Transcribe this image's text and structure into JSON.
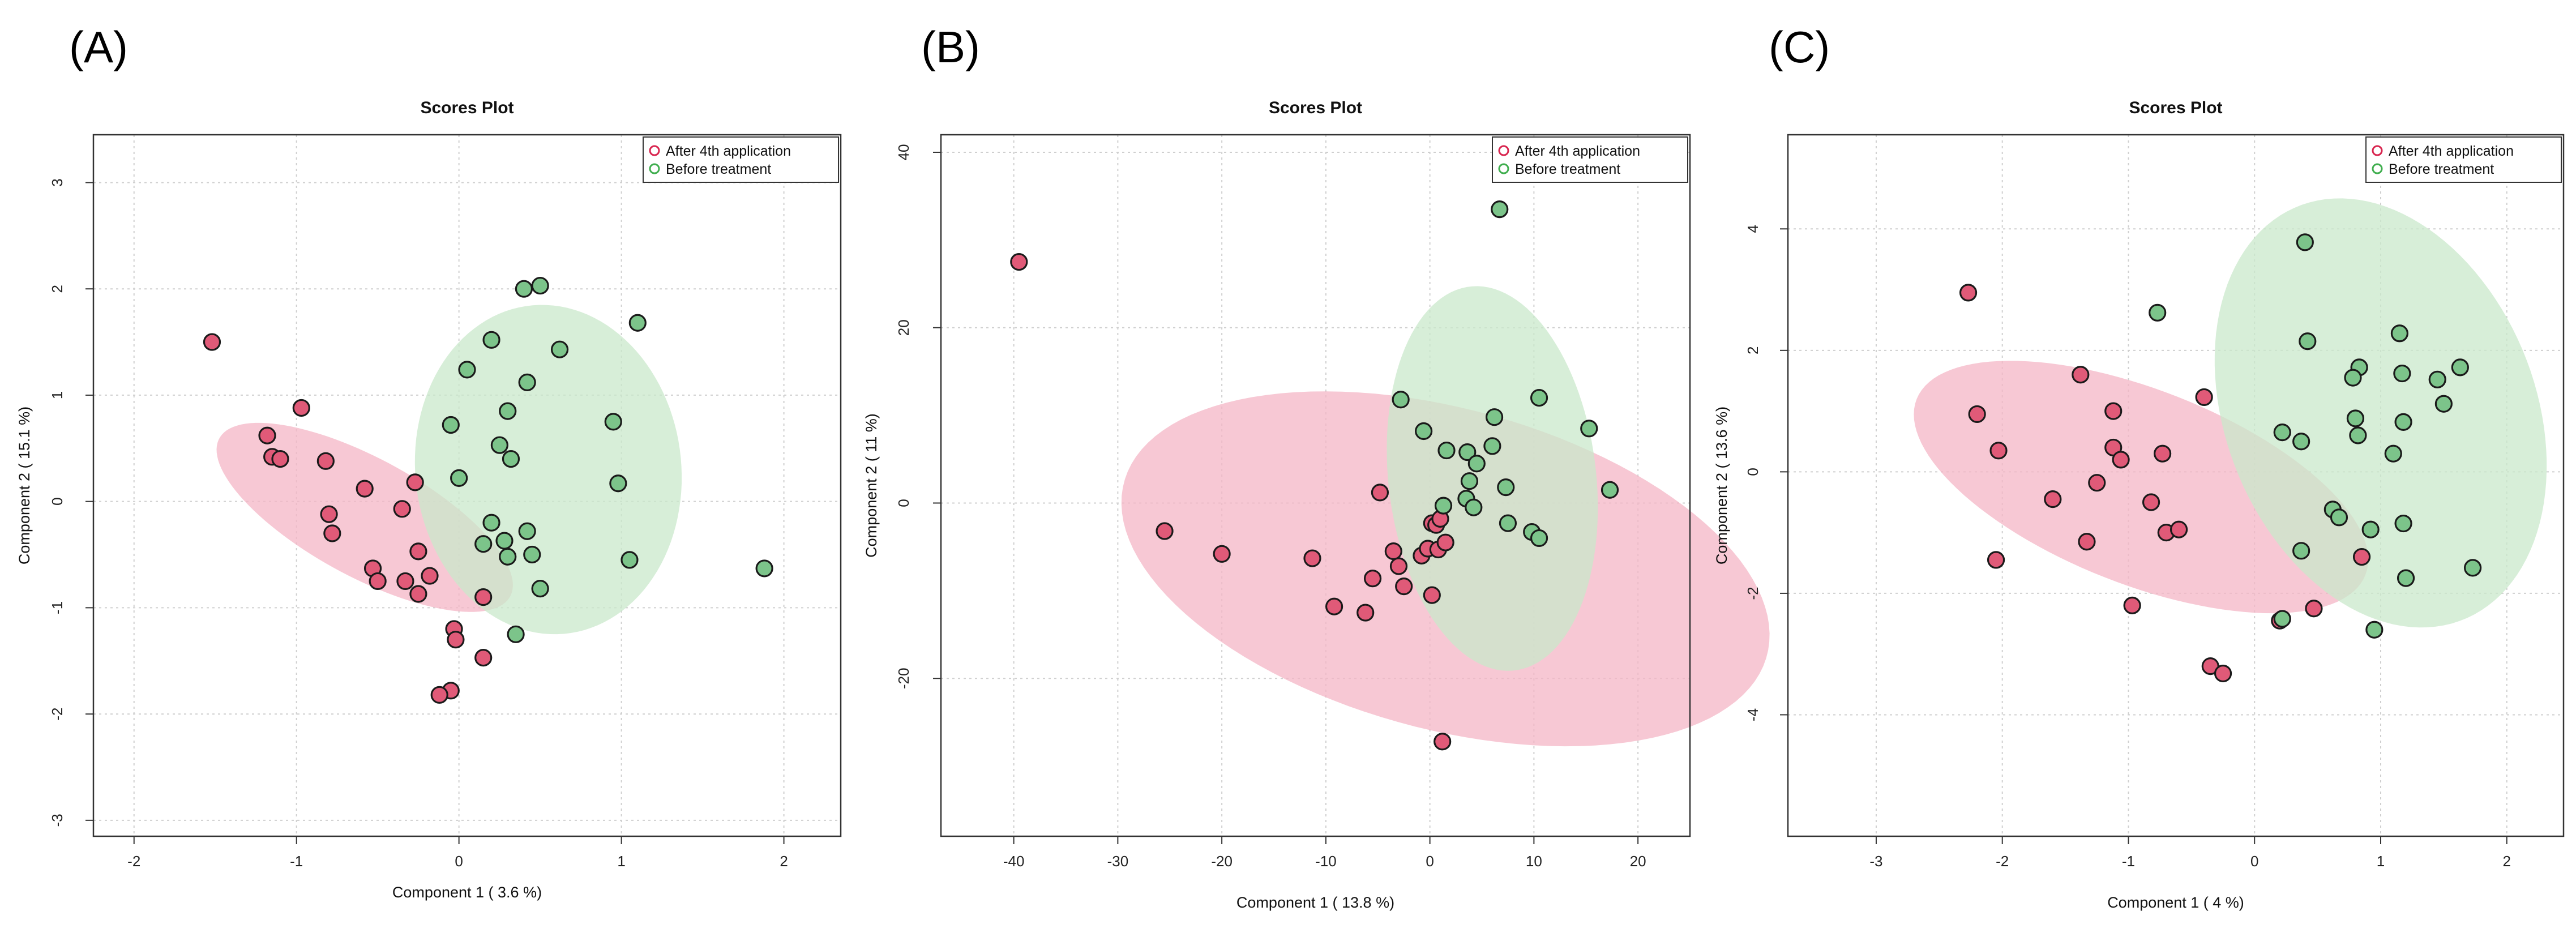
{
  "panel_labels": [
    "(A)",
    "(B)",
    "(C)"
  ],
  "colors": {
    "group1_fill": "#e05a78",
    "group1_ellipse": "#f4b6c6",
    "group2_fill": "#7cc48a",
    "group2_ellipse": "#c9e8cb",
    "point_stroke": "#1a1a1a",
    "grid": "#cfcfcf"
  },
  "chart_data": [
    {
      "type": "scatter",
      "title": "Scores Plot",
      "xlabel": "Component 1 ( 3.6 %)",
      "ylabel": "Component 2 ( 15.1 %)",
      "xlim": [
        -2.25,
        2.35
      ],
      "ylim": [
        -3.15,
        3.45
      ],
      "xticks": [
        -2,
        -1,
        0,
        1,
        2
      ],
      "xtick_labels": [
        "-2",
        "-1",
        "0",
        "1",
        "2"
      ],
      "yticks": [
        -3,
        -2,
        -1,
        0,
        1,
        2,
        3
      ],
      "ytick_labels": [
        "-3",
        "-2",
        "-1",
        "0",
        "1",
        "2",
        "3"
      ],
      "grid": true,
      "legend_position": "top-right",
      "series": [
        {
          "name": "After 4th application",
          "ellipse": {
            "cx": -0.58,
            "cy": -0.15,
            "rx": 1.18,
            "ry": 0.48,
            "angle": -44
          },
          "points": [
            [
              -1.52,
              1.5
            ],
            [
              -1.18,
              0.62
            ],
            [
              -1.15,
              0.42
            ],
            [
              -1.1,
              0.4
            ],
            [
              -0.97,
              0.88
            ],
            [
              -0.82,
              0.38
            ],
            [
              -0.8,
              -0.12
            ],
            [
              -0.78,
              -0.3
            ],
            [
              -0.58,
              0.12
            ],
            [
              -0.53,
              -0.63
            ],
            [
              -0.5,
              -0.75
            ],
            [
              -0.35,
              -0.07
            ],
            [
              -0.33,
              -0.75
            ],
            [
              -0.27,
              0.18
            ],
            [
              -0.25,
              -0.47
            ],
            [
              -0.25,
              -0.87
            ],
            [
              -0.18,
              -0.7
            ],
            [
              -0.03,
              -1.2
            ],
            [
              -0.02,
              -1.3
            ],
            [
              0.15,
              -0.9
            ],
            [
              0.15,
              -1.47
            ],
            [
              -0.05,
              -1.78
            ],
            [
              -0.12,
              -1.82
            ]
          ]
        },
        {
          "name": "Before treatment",
          "ellipse": {
            "cx": 0.55,
            "cy": 0.3,
            "rx": 1.55,
            "ry": 0.82,
            "angle": -88
          },
          "points": [
            [
              0.4,
              2.0
            ],
            [
              0.5,
              2.03
            ],
            [
              1.1,
              1.68
            ],
            [
              0.2,
              1.52
            ],
            [
              0.62,
              1.43
            ],
            [
              0.05,
              1.24
            ],
            [
              0.42,
              1.12
            ],
            [
              0.3,
              0.85
            ],
            [
              -0.05,
              0.72
            ],
            [
              0.95,
              0.75
            ],
            [
              0.25,
              0.53
            ],
            [
              0.32,
              0.4
            ],
            [
              0.0,
              0.22
            ],
            [
              0.98,
              0.17
            ],
            [
              0.2,
              -0.2
            ],
            [
              0.42,
              -0.28
            ],
            [
              0.15,
              -0.4
            ],
            [
              0.28,
              -0.37
            ],
            [
              0.3,
              -0.52
            ],
            [
              0.45,
              -0.5
            ],
            [
              1.05,
              -0.55
            ],
            [
              0.5,
              -0.82
            ],
            [
              0.35,
              -1.25
            ],
            [
              1.88,
              -0.63
            ]
          ]
        }
      ]
    },
    {
      "type": "scatter",
      "title": "Scores Plot",
      "xlabel": "Component 1 ( 13.8 %)",
      "ylabel": "Component 2 ( 11 %)",
      "xlim": [
        -47,
        25
      ],
      "ylim": [
        -38,
        42
      ],
      "xticks": [
        -40,
        -30,
        -20,
        -10,
        0,
        10,
        20
      ],
      "xtick_labels": [
        "-40",
        "-30",
        "-20",
        "-10",
        "0",
        "10",
        "20"
      ],
      "yticks": [
        -20,
        0,
        20,
        40
      ],
      "ytick_labels": [
        "-20",
        "0",
        "20",
        "40"
      ],
      "grid": true,
      "legend_position": "top-right",
      "series": [
        {
          "name": "After 4th application",
          "ellipse": {
            "cx": 1.5,
            "cy": -7.5,
            "rx": 32.5,
            "ry": 18,
            "angle": -20
          },
          "points": [
            [
              -39.5,
              27.5
            ],
            [
              -25.5,
              -3.2
            ],
            [
              -20,
              -5.8
            ],
            [
              -11.3,
              -6.3
            ],
            [
              -9.2,
              -11.8
            ],
            [
              -6.2,
              -12.5
            ],
            [
              -4.8,
              1.2
            ],
            [
              -5.5,
              -8.6
            ],
            [
              -3.5,
              -5.5
            ],
            [
              -3,
              -7.2
            ],
            [
              -2.5,
              -9.5
            ],
            [
              -0.8,
              -6
            ],
            [
              -0.2,
              -5.2
            ],
            [
              0.2,
              -2.3
            ],
            [
              0.6,
              -2.5
            ],
            [
              1,
              -1.8
            ],
            [
              0.8,
              -5.3
            ],
            [
              1.5,
              -4.5
            ],
            [
              0.2,
              -10.5
            ],
            [
              1.2,
              -27.2
            ]
          ]
        },
        {
          "name": "Before treatment",
          "ellipse": {
            "cx": 6,
            "cy": 2.8,
            "rx": 22,
            "ry": 10,
            "angle": -85
          },
          "points": [
            [
              6.7,
              33.5
            ],
            [
              -2.8,
              11.8
            ],
            [
              10.5,
              12
            ],
            [
              6.2,
              9.8
            ],
            [
              -0.6,
              8.2
            ],
            [
              15.3,
              8.5
            ],
            [
              1.6,
              6
            ],
            [
              3.6,
              5.8
            ],
            [
              6,
              6.5
            ],
            [
              4.5,
              4.5
            ],
            [
              3.8,
              2.5
            ],
            [
              7.3,
              1.8
            ],
            [
              17.3,
              1.5
            ],
            [
              3.5,
              0.5
            ],
            [
              4.2,
              -0.5
            ],
            [
              1.3,
              -0.3
            ],
            [
              7.5,
              -2.3
            ],
            [
              9.8,
              -3.3
            ],
            [
              10.5,
              -4
            ]
          ]
        }
      ]
    },
    {
      "type": "scatter",
      "title": "Scores Plot",
      "xlabel": "Component 1 ( 4 %)",
      "ylabel": "Component 2 ( 13.6 %)",
      "xlim": [
        -3.7,
        2.45
      ],
      "ylim": [
        -6.0,
        5.55
      ],
      "xticks": [
        -3,
        -2,
        -1,
        0,
        1,
        2
      ],
      "xtick_labels": [
        "-3",
        "-2",
        "-1",
        "0",
        "1",
        "2"
      ],
      "yticks": [
        -4,
        -2,
        0,
        2,
        4
      ],
      "ytick_labels": [
        "-4",
        "-2",
        "0",
        "2",
        "4"
      ],
      "grid": true,
      "legend_position": "top-right",
      "series": [
        {
          "name": "After 4th application",
          "ellipse": {
            "cx": -0.9,
            "cy": -0.25,
            "rx": 2.45,
            "ry": 1.25,
            "angle": -52
          },
          "points": [
            [
              -2.27,
              2.95
            ],
            [
              -2.2,
              0.95
            ],
            [
              -2.03,
              0.35
            ],
            [
              -2.05,
              -1.45
            ],
            [
              -1.6,
              -0.45
            ],
            [
              -1.38,
              1.6
            ],
            [
              -1.33,
              -1.15
            ],
            [
              -1.25,
              -0.18
            ],
            [
              -1.12,
              1.0
            ],
            [
              -1.12,
              0.4
            ],
            [
              -1.06,
              0.2
            ],
            [
              -0.97,
              -2.2
            ],
            [
              -0.82,
              -0.5
            ],
            [
              -0.73,
              0.3
            ],
            [
              -0.7,
              -1.0
            ],
            [
              -0.6,
              -0.95
            ],
            [
              -0.4,
              1.23
            ],
            [
              -0.35,
              -3.2
            ],
            [
              -0.25,
              -3.32
            ],
            [
              0.2,
              -2.45
            ],
            [
              0.47,
              -2.25
            ],
            [
              0.85,
              -1.4
            ]
          ]
        },
        {
          "name": "Before treatment",
          "ellipse": {
            "cx": 1.0,
            "cy": 0.97,
            "rx": 3.55,
            "ry": 1.27,
            "angle": -84
          },
          "points": [
            [
              0.4,
              3.78
            ],
            [
              -0.77,
              2.62
            ],
            [
              0.42,
              2.15
            ],
            [
              1.15,
              2.28
            ],
            [
              0.83,
              1.72
            ],
            [
              1.63,
              1.72
            ],
            [
              0.78,
              1.55
            ],
            [
              1.17,
              1.62
            ],
            [
              1.45,
              1.52
            ],
            [
              1.5,
              1.12
            ],
            [
              0.22,
              0.65
            ],
            [
              0.37,
              0.5
            ],
            [
              0.8,
              0.88
            ],
            [
              1.18,
              0.82
            ],
            [
              0.82,
              0.6
            ],
            [
              1.1,
              0.3
            ],
            [
              0.62,
              -0.62
            ],
            [
              0.67,
              -0.75
            ],
            [
              1.18,
              -0.85
            ],
            [
              0.92,
              -0.95
            ],
            [
              0.37,
              -1.3
            ],
            [
              1.2,
              -1.75
            ],
            [
              1.73,
              -1.58
            ],
            [
              0.95,
              -2.6
            ],
            [
              0.22,
              -2.42
            ]
          ]
        }
      ]
    }
  ]
}
